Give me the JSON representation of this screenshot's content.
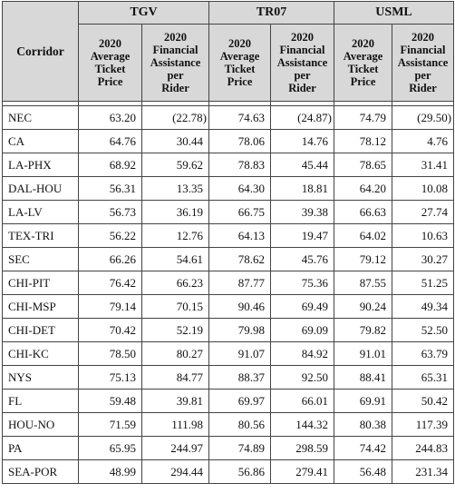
{
  "headers": {
    "corridor": "Corridor",
    "groups": [
      "TGV",
      "TR07",
      "USML"
    ],
    "price": [
      "2020",
      "Average",
      "Ticket",
      "Price"
    ],
    "assistance": [
      "2020",
      "Financial",
      "Assistance",
      "per",
      "Rider"
    ]
  },
  "rows": [
    {
      "corridor": "NEC",
      "tgv_price": "63.20",
      "tgv_assist": "(22.78)",
      "tr07_price": "74.63",
      "tr07_assist": "(24.87)",
      "usml_price": "74.79",
      "usml_assist": "(29.50)"
    },
    {
      "corridor": "CA",
      "tgv_price": "64.76",
      "tgv_assist": "30.44",
      "tr07_price": "78.06",
      "tr07_assist": "14.76",
      "usml_price": "78.12",
      "usml_assist": "4.76"
    },
    {
      "corridor": "LA-PHX",
      "tgv_price": "68.92",
      "tgv_assist": "59.62",
      "tr07_price": "78.83",
      "tr07_assist": "45.44",
      "usml_price": "78.65",
      "usml_assist": "31.41"
    },
    {
      "corridor": "DAL-HOU",
      "tgv_price": "56.31",
      "tgv_assist": "13.35",
      "tr07_price": "64.30",
      "tr07_assist": "18.81",
      "usml_price": "64.20",
      "usml_assist": "10.08"
    },
    {
      "corridor": "LA-LV",
      "tgv_price": "56.73",
      "tgv_assist": "36.19",
      "tr07_price": "66.75",
      "tr07_assist": "39.38",
      "usml_price": "66.63",
      "usml_assist": "27.74"
    },
    {
      "corridor": "TEX-TRI",
      "tgv_price": "56.22",
      "tgv_assist": "12.76",
      "tr07_price": "64.13",
      "tr07_assist": "19.47",
      "usml_price": "64.02",
      "usml_assist": "10.63"
    },
    {
      "corridor": "SEC",
      "tgv_price": "66.26",
      "tgv_assist": "54.61",
      "tr07_price": "78.62",
      "tr07_assist": "45.76",
      "usml_price": "79.12",
      "usml_assist": "30.27"
    },
    {
      "corridor": "CHI-PIT",
      "tgv_price": "76.42",
      "tgv_assist": "66.23",
      "tr07_price": "87.77",
      "tr07_assist": "75.36",
      "usml_price": "87.55",
      "usml_assist": "51.25"
    },
    {
      "corridor": "CHI-MSP",
      "tgv_price": "79.14",
      "tgv_assist": "70.15",
      "tr07_price": "90.46",
      "tr07_assist": "69.49",
      "usml_price": "90.24",
      "usml_assist": "49.34"
    },
    {
      "corridor": "CHI-DET",
      "tgv_price": "70.42",
      "tgv_assist": "52.19",
      "tr07_price": "79.98",
      "tr07_assist": "69.09",
      "usml_price": "79.82",
      "usml_assist": "52.50"
    },
    {
      "corridor": "CHI-KC",
      "tgv_price": "78.50",
      "tgv_assist": "80.27",
      "tr07_price": "91.07",
      "tr07_assist": "84.92",
      "usml_price": "91.01",
      "usml_assist": "63.79"
    },
    {
      "corridor": "NYS",
      "tgv_price": "75.13",
      "tgv_assist": "84.77",
      "tr07_price": "88.37",
      "tr07_assist": "92.50",
      "usml_price": "88.41",
      "usml_assist": "65.31"
    },
    {
      "corridor": "FL",
      "tgv_price": "59.48",
      "tgv_assist": "39.81",
      "tr07_price": "69.97",
      "tr07_assist": "66.01",
      "usml_price": "69.91",
      "usml_assist": "50.42"
    },
    {
      "corridor": "HOU-NO",
      "tgv_price": "71.59",
      "tgv_assist": "111.98",
      "tr07_price": "80.56",
      "tr07_assist": "144.32",
      "usml_price": "80.38",
      "usml_assist": "117.39"
    },
    {
      "corridor": "PA",
      "tgv_price": "65.95",
      "tgv_assist": "244.97",
      "tr07_price": "74.89",
      "tr07_assist": "298.59",
      "usml_price": "74.42",
      "usml_assist": "244.83"
    },
    {
      "corridor": "SEA-POR",
      "tgv_price": "48.99",
      "tgv_assist": "294.44",
      "tr07_price": "56.86",
      "tr07_assist": "279.41",
      "usml_price": "56.48",
      "usml_assist": "231.34"
    }
  ]
}
